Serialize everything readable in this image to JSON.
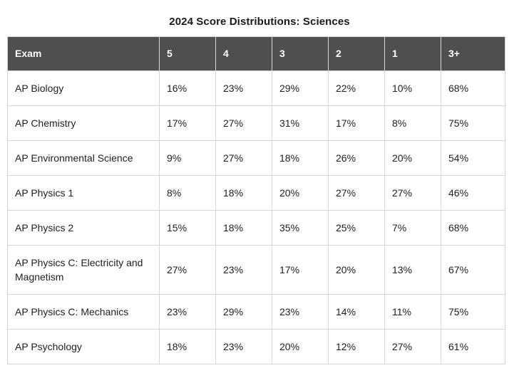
{
  "chart_data": {
    "type": "table",
    "title": "2024 Score Distributions: Sciences",
    "columns": [
      "Exam",
      "5",
      "4",
      "3",
      "2",
      "1",
      "3+"
    ],
    "rows": [
      {
        "exam": "AP Biology",
        "values": [
          "16%",
          "23%",
          "29%",
          "22%",
          "10%",
          "68%"
        ]
      },
      {
        "exam": "AP Chemistry",
        "values": [
          "17%",
          "27%",
          "31%",
          "17%",
          "8%",
          "75%"
        ]
      },
      {
        "exam": "AP Environmental Science",
        "values": [
          "9%",
          "27%",
          "18%",
          "26%",
          "20%",
          "54%"
        ]
      },
      {
        "exam": "AP Physics 1",
        "values": [
          "8%",
          "18%",
          "20%",
          "27%",
          "27%",
          "46%"
        ]
      },
      {
        "exam": "AP Physics 2",
        "values": [
          "15%",
          "18%",
          "35%",
          "25%",
          "7%",
          "68%"
        ]
      },
      {
        "exam": "AP Physics C: Electricity and Magnetism",
        "values": [
          "27%",
          "23%",
          "17%",
          "20%",
          "13%",
          "67%"
        ]
      },
      {
        "exam": "AP Physics C: Mechanics",
        "values": [
          "23%",
          "29%",
          "23%",
          "14%",
          "11%",
          "75%"
        ]
      },
      {
        "exam": "AP Psychology",
        "values": [
          "18%",
          "23%",
          "20%",
          "12%",
          "27%",
          "61%"
        ]
      }
    ]
  },
  "colors": {
    "header_bg": "#4f4f4f",
    "header_text": "#ffffff",
    "body_text": "#212121",
    "border": "#d5d5d5",
    "title_text": "#1a1a1a",
    "page_bg": "#ffffff"
  }
}
